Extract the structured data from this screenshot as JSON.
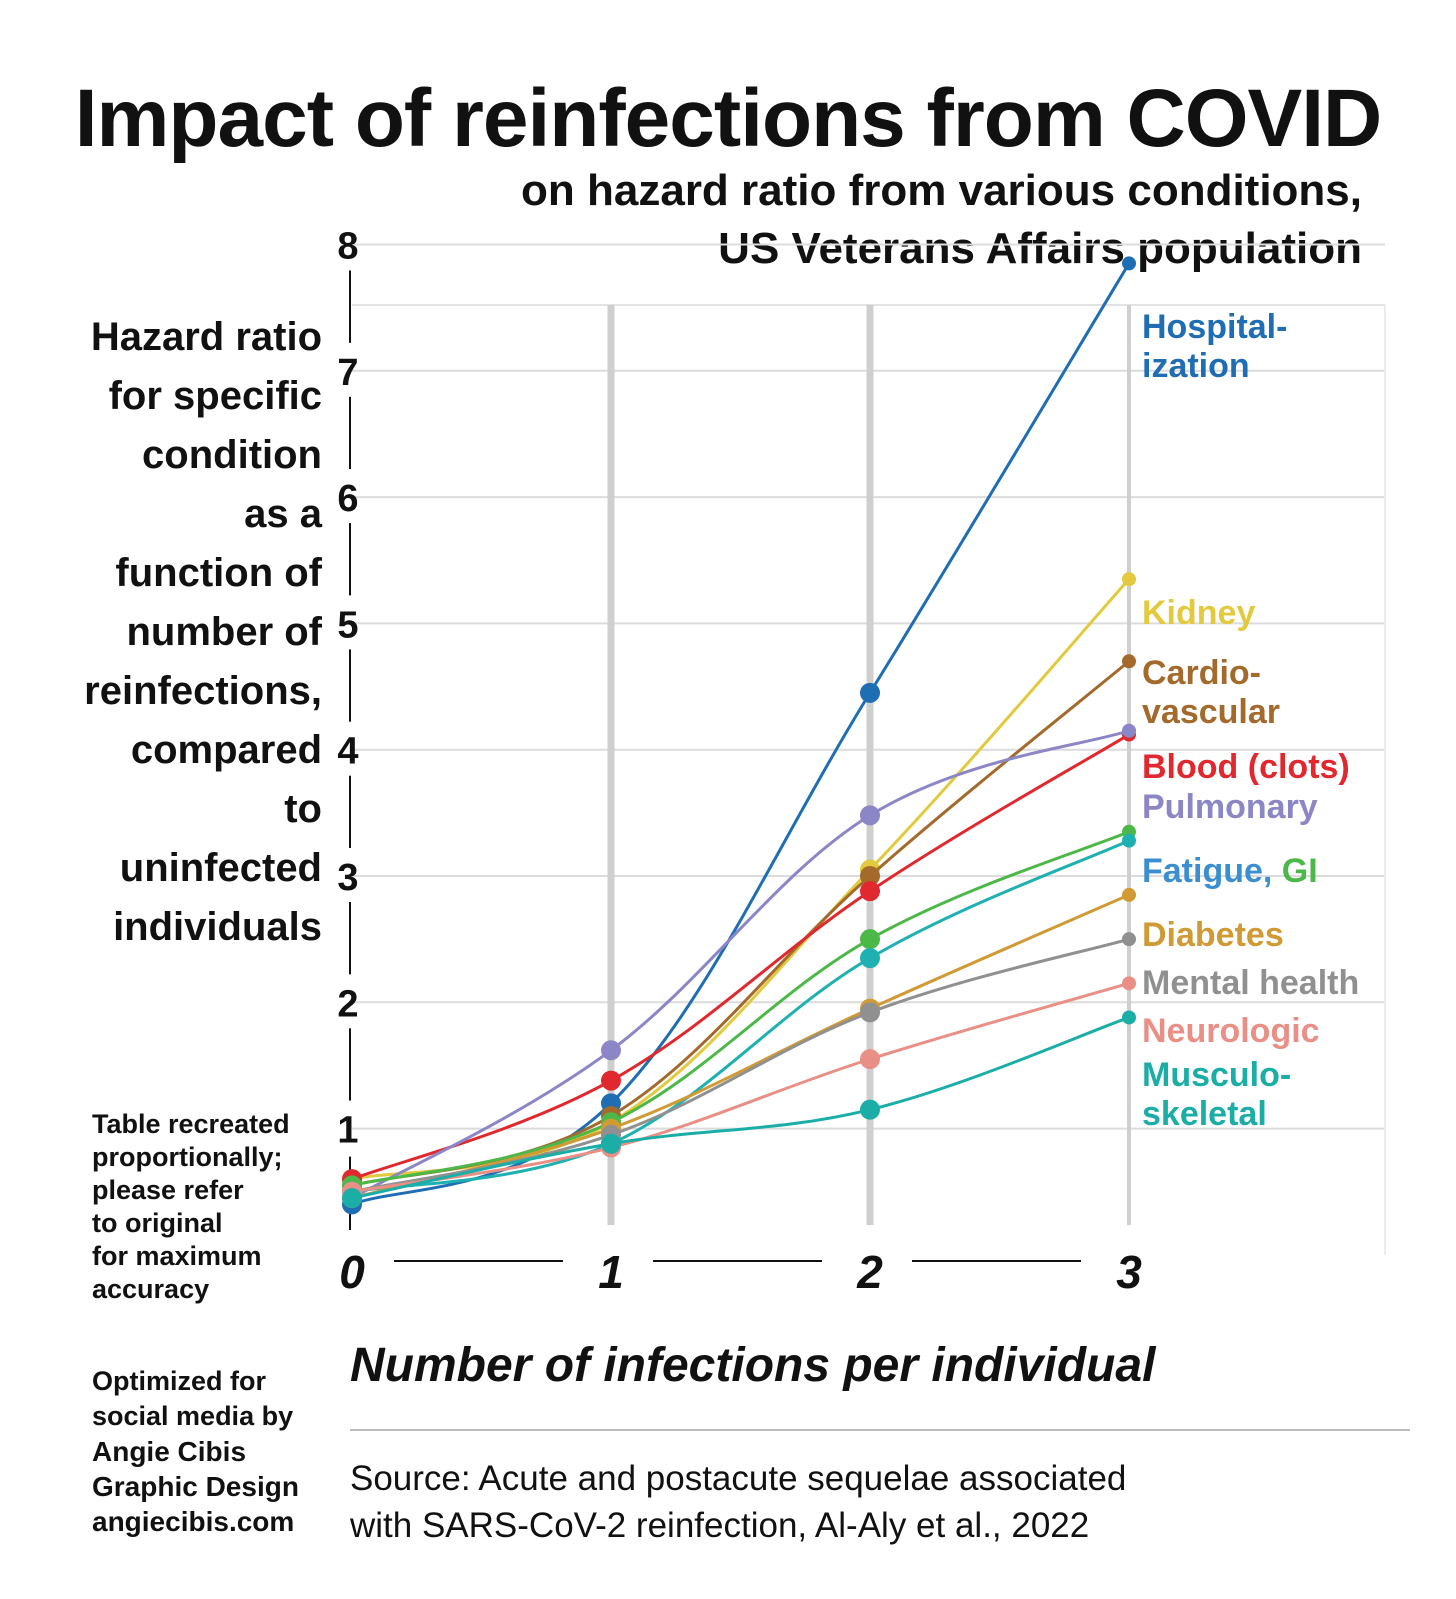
{
  "title": "Impact of reinfections from COVID",
  "subtitle_line1": "on hazard ratio from various conditions,",
  "subtitle_line2": "US Veterans Affairs population",
  "ylabel_lines": [
    "Hazard ratio",
    "for specific",
    "condition",
    "as a",
    "function of",
    "number of",
    "reinfections,",
    "compared",
    "to",
    "uninfected",
    "individuals"
  ],
  "note_lines": [
    "Table recreated",
    "proportionally;",
    "please refer",
    "to original",
    "for maximum",
    "accuracy"
  ],
  "credit_lines": [
    "Optimized for",
    "social media by",
    "Angie Cibis",
    "Graphic Design",
    "angiecibis.com"
  ],
  "source_lines": [
    "Source: Acute and postacute sequelae associated",
    "with SARS-CoV-2 reinfection, Al-Aly et al., 2022"
  ],
  "chart_data": {
    "type": "line",
    "xlabel": "Number of infections per individual",
    "x": [
      0,
      1,
      2,
      3
    ],
    "x_tick_labels": [
      "0",
      "1",
      "2",
      "3"
    ],
    "y_tick_labels": [
      "1",
      "2",
      "3",
      "4",
      "5",
      "6",
      "7",
      "8"
    ],
    "ylim": [
      0.3,
      8.1
    ],
    "grid": true,
    "series": [
      {
        "name": "Hospital-\nization",
        "label_lines": [
          "Hospital-",
          "ization"
        ],
        "color": "#1f6db3",
        "values": [
          0.4,
          1.2,
          4.45,
          7.85
        ]
      },
      {
        "name": "Kidney",
        "label_lines": [
          "Kidney"
        ],
        "color": "#e3c93e",
        "values": [
          0.6,
          1.05,
          3.05,
          5.35
        ]
      },
      {
        "name": "Cardio-\nvascular",
        "label_lines": [
          "Cardio-",
          "vascular"
        ],
        "color": "#a36a2c",
        "values": [
          0.55,
          1.1,
          3.0,
          4.7
        ]
      },
      {
        "name": "Blood (clots)",
        "label_lines": [
          "Blood (clots)"
        ],
        "color": "#e0282e",
        "values": [
          0.6,
          1.38,
          2.88,
          4.12
        ]
      },
      {
        "name": "Pulmonary",
        "label_lines": [
          "Pulmonary"
        ],
        "color": "#8b86c6",
        "values": [
          0.45,
          1.62,
          3.48,
          4.15
        ]
      },
      {
        "name": "Fatigue",
        "label_lines": [],
        "color": "#4cb848",
        "values": [
          0.55,
          1.05,
          2.5,
          3.35
        ]
      },
      {
        "name": "GI",
        "label_lines": [],
        "color": "#1fb1b1",
        "values": [
          0.5,
          0.88,
          2.35,
          3.28
        ]
      },
      {
        "name": "Diabetes",
        "label_lines": [
          "Diabetes"
        ],
        "color": "#d09a35",
        "values": [
          0.45,
          1.0,
          1.95,
          2.85
        ]
      },
      {
        "name": "Mental health",
        "label_lines": [
          "Mental health"
        ],
        "color": "#909090",
        "values": [
          0.5,
          0.95,
          1.92,
          2.5
        ]
      },
      {
        "name": "Neurologic",
        "label_lines": [
          "Neurologic"
        ],
        "color": "#e98f86",
        "values": [
          0.5,
          0.85,
          1.55,
          2.15
        ]
      },
      {
        "name": "Musculo-\nskeletal",
        "label_lines": [
          "Musculo-",
          "skeletal"
        ],
        "color": "#1aaea6",
        "values": [
          0.45,
          0.88,
          1.15,
          1.88
        ]
      }
    ],
    "combined_label": {
      "part1": "Fatigue,",
      "part1_color": "#3b8fd1",
      "part2": " GI",
      "part2_color": "#4cb848"
    }
  }
}
